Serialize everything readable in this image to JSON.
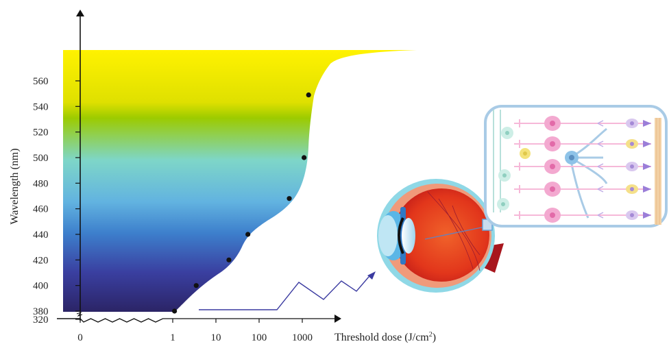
{
  "colors": {
    "band_stops": [
      "#fff200",
      "#dfe000",
      "#9ccb00",
      "#7ed6c8",
      "#62b3e0",
      "#3d7fcc",
      "#3a3fa0",
      "#2b2466"
    ],
    "points": "#111111",
    "axis": "#111111",
    "light_wave": "#3a3aa0"
  },
  "chart_data": {
    "type": "line",
    "title": "",
    "xlabel": "Threshold dose (J/cm2)",
    "ylabel": "Wavelength (nm)",
    "x_scale": "log",
    "x_ticks": [
      "0",
      "1",
      "10",
      "100",
      "1000"
    ],
    "y_ticks": [
      "320",
      "380",
      "400",
      "420",
      "440",
      "460",
      "480",
      "500",
      "520",
      "540",
      "560"
    ],
    "x_axis_break": true,
    "y_axis_break": true,
    "series": [
      {
        "x": [
          1.1,
          3.5,
          20,
          55,
          500,
          1100,
          1400
        ],
        "y": [
          380,
          400,
          420,
          440,
          468,
          500,
          549
        ]
      }
    ],
    "ylim": [
      380,
      580
    ],
    "grid": false
  },
  "illustration": {
    "eye_icon": "eye-cross-section",
    "retina_icon": "retina-cell-layers"
  }
}
